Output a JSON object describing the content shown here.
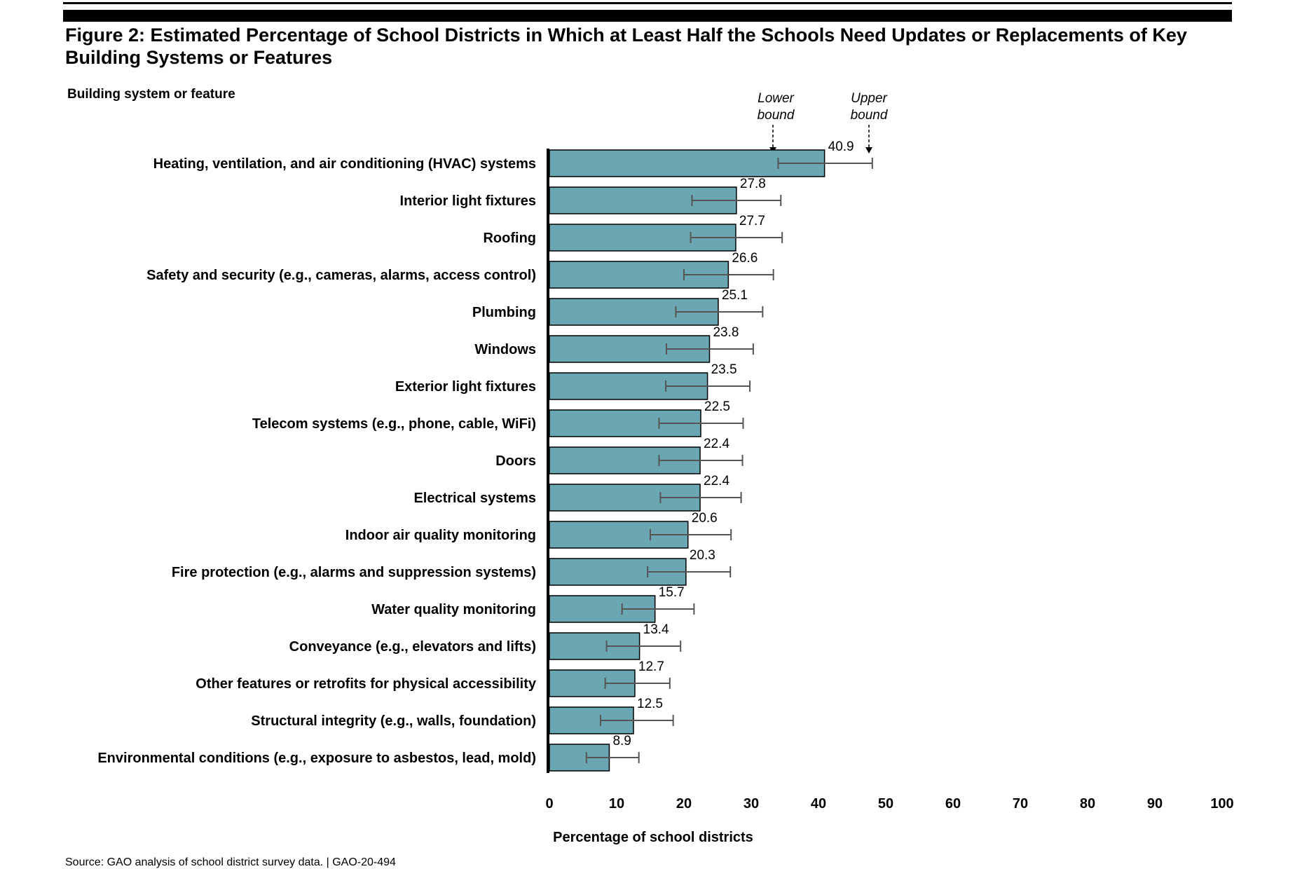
{
  "figure": {
    "title": "Figure 2: Estimated Percentage of School Districts in Which at Least Half the Schools Need Updates or Replacements of Key Building Systems or Features",
    "source": "Source: GAO analysis of school district survey data.  |  GAO-20-494"
  },
  "legend": {
    "lower_bound_label": [
      "Lower",
      "bound"
    ],
    "upper_bound_label": [
      "Upper",
      "bound"
    ]
  },
  "colors": {
    "bar_fill": "#6ba7b2",
    "bar_stroke": "#000000",
    "error_bar": "#555555"
  },
  "chart_data": {
    "type": "bar",
    "orientation": "horizontal",
    "title": "Figure 2: Estimated Percentage of School Districts in Which at Least Half the Schools Need Updates or Replacements of Key Building Systems or Features",
    "xlabel": "Percentage of school districts",
    "ylabel": "Building system or feature",
    "xlim": [
      0,
      100
    ],
    "xticks": [
      0,
      10,
      20,
      30,
      40,
      50,
      60,
      70,
      80,
      90,
      100
    ],
    "grid": false,
    "categories": [
      "Heating, ventilation, and air conditioning (HVAC) systems",
      "Interior light fixtures",
      "Roofing",
      "Safety and security (e.g., cameras, alarms, access control)",
      "Plumbing",
      "Windows",
      "Exterior light fixtures",
      "Telecom systems (e.g., phone, cable, WiFi)",
      "Doors",
      "Electrical systems",
      "Indoor air quality monitoring",
      "Fire protection (e.g., alarms and suppression systems)",
      "Water quality monitoring",
      "Conveyance (e.g., elevators and lifts)",
      "Other features or retrofits for physical accessibility",
      "Structural integrity (e.g., walls, foundation)",
      "Environmental conditions (e.g., exposure to asbestos, lead, mold)"
    ],
    "values": [
      40.9,
      27.8,
      27.7,
      26.6,
      25.1,
      23.8,
      23.5,
      22.5,
      22.4,
      22.4,
      20.6,
      20.3,
      15.7,
      13.4,
      12.7,
      12.5,
      8.9
    ],
    "value_labels": [
      "40.9",
      "27.8",
      "27.7",
      "26.6",
      "25.1",
      "23.8",
      "23.5",
      "22.5",
      "22.4",
      "22.4",
      "20.6",
      "20.3",
      "15.7",
      "13.4",
      "12.7",
      "12.5",
      "8.9"
    ],
    "lower_bounds": [
      34.0,
      21.2,
      21.0,
      20.0,
      18.8,
      17.4,
      17.3,
      16.3,
      16.3,
      16.5,
      15.0,
      14.6,
      10.8,
      8.5,
      8.3,
      7.6,
      5.5
    ],
    "upper_bounds": [
      48.0,
      34.4,
      34.6,
      33.3,
      31.7,
      30.3,
      29.8,
      28.8,
      28.7,
      28.5,
      27.0,
      26.9,
      21.5,
      19.5,
      17.9,
      18.4,
      13.3
    ]
  }
}
